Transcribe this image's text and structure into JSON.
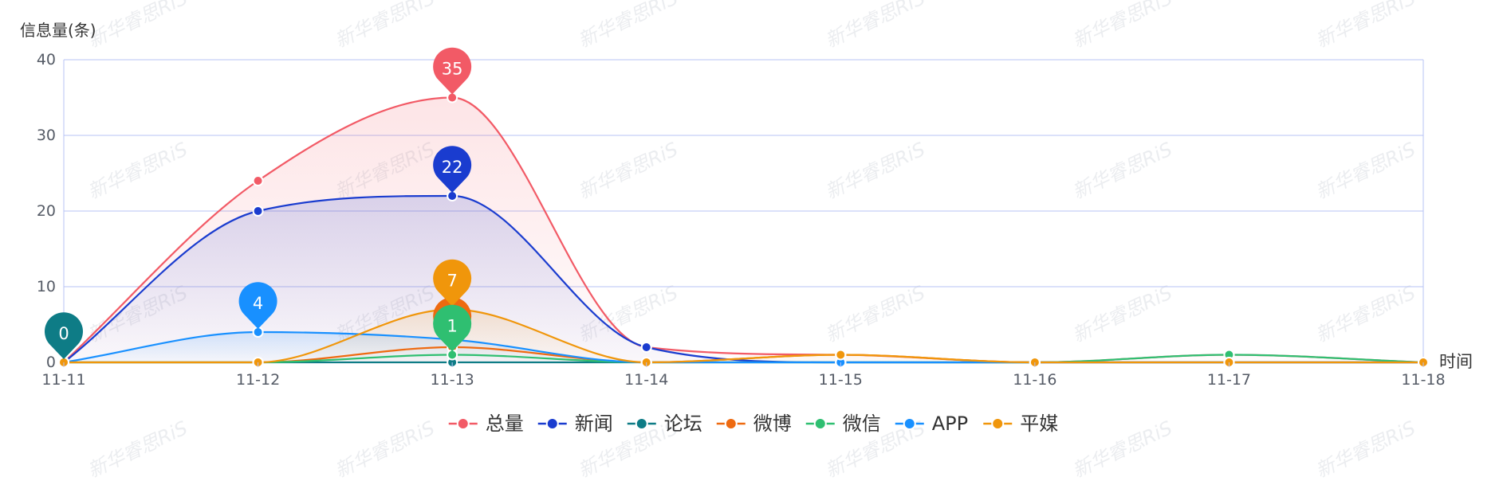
{
  "chart_data": {
    "type": "line",
    "smooth": true,
    "ylabel": "信息量(条)",
    "xlabel": "时间",
    "categories": [
      "11-11",
      "11-12",
      "11-13",
      "11-14",
      "11-15",
      "11-16",
      "11-17",
      "11-18"
    ],
    "yticks": [
      "0",
      "10",
      "20",
      "30",
      "40"
    ],
    "ylim": [
      0,
      40
    ],
    "grid": true,
    "legend_position": "bottom-center",
    "series": [
      {
        "name": "总量",
        "color": "#f25a66",
        "values": [
          0,
          24,
          35,
          2,
          1,
          0,
          1,
          0
        ],
        "area": true
      },
      {
        "name": "新闻",
        "color": "#1a3ccf",
        "values": [
          0,
          20,
          22,
          2,
          0,
          0,
          0,
          0
        ],
        "area": true
      },
      {
        "name": "论坛",
        "color": "#0e7c86",
        "values": [
          0,
          0,
          0,
          0,
          0,
          0,
          0,
          0
        ],
        "area": false
      },
      {
        "name": "微博",
        "color": "#ee6a10",
        "values": [
          0,
          0,
          2,
          0,
          1,
          0,
          0,
          0
        ],
        "area": false
      },
      {
        "name": "微信",
        "color": "#2fbf71",
        "values": [
          0,
          0,
          1,
          0,
          0,
          0,
          1,
          0
        ],
        "area": false
      },
      {
        "name": "APP",
        "color": "#1890ff",
        "values": [
          0,
          4,
          3,
          0,
          0,
          0,
          0,
          0
        ],
        "area": true
      },
      {
        "name": "平媒",
        "color": "#f0960b",
        "values": [
          0,
          0,
          7,
          0,
          1,
          0,
          0,
          0
        ],
        "area": true
      }
    ],
    "annotations": [
      {
        "series": "论坛",
        "category": "11-11",
        "value": 0,
        "text": "0"
      },
      {
        "series": "APP",
        "category": "11-12",
        "value": 4,
        "text": "4"
      },
      {
        "series": "总量",
        "category": "11-13",
        "value": 35,
        "text": "35"
      },
      {
        "series": "新闻",
        "category": "11-13",
        "value": 22,
        "text": "22"
      },
      {
        "series": "微博",
        "category": "11-13",
        "value": 2,
        "text": ""
      },
      {
        "series": "平媒",
        "category": "11-13",
        "value": 7,
        "text": "7"
      },
      {
        "series": "微信",
        "category": "11-13",
        "value": 1,
        "text": "1"
      }
    ],
    "watermark": "新华睿思RiS"
  }
}
